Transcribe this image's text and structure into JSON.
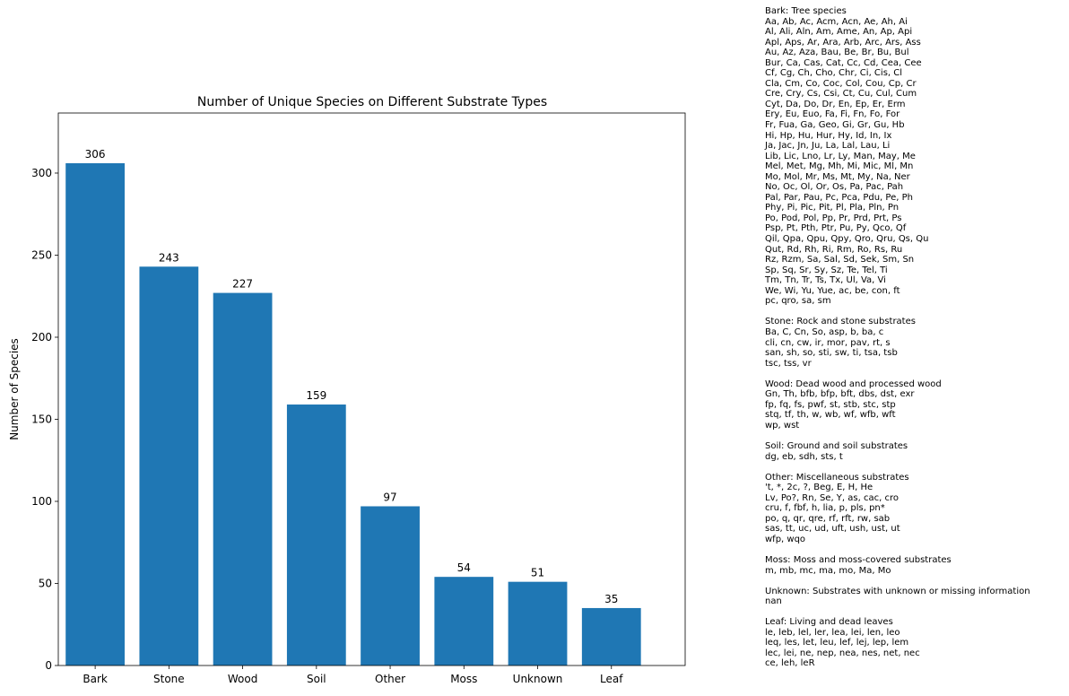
{
  "chart_data": {
    "type": "bar",
    "title": "Number of Unique Species on Different Substrate Types",
    "xlabel": "",
    "ylabel": "Number of Species",
    "categories": [
      "Bark",
      "Stone",
      "Wood",
      "Soil",
      "Other",
      "Moss",
      "Unknown",
      "Leaf"
    ],
    "values": [
      306,
      243,
      227,
      159,
      97,
      54,
      51,
      35
    ],
    "data_labels": [
      "306",
      "243",
      "227",
      "159",
      "97",
      "54",
      "51",
      "35"
    ],
    "ylim": [
      0,
      336.6
    ],
    "yticks": [
      0,
      50,
      100,
      150,
      200,
      250,
      300
    ],
    "ytick_labels": [
      "0",
      "50",
      "100",
      "150",
      "200",
      "250",
      "300"
    ],
    "grid": false,
    "bar_color": "#1f77b4"
  },
  "notes": [
    {
      "title": "Bark: Tree species",
      "lines": [
        "Aa, Ab, Ac, Acm, Acn, Ae, Ah, Ai",
        "Al, Ali, Aln, Am, Ame, An, Ap, Api",
        "Apl, Aps, Ar, Ara, Arb, Arc, Ars, Ass",
        "Au, Az, Aza, Bau, Be, Br, Bu, Bul",
        "Bur, Ca, Cas, Cat, Cc, Cd, Cea, Cee",
        "Cf, Cg, Ch, Cho, Chr, Ci, Cis, Cl",
        "Cla, Cm, Co, Coc, Col, Cou, Cp, Cr",
        "Cre, Cry, Cs, Csi, Ct, Cu, Cul, Cum",
        "Cyt, Da, Do, Dr, En, Ep, Er, Erm",
        "Ery, Eu, Euo, Fa, Fi, Fn, Fo, For",
        "Fr, Fua, Ga, Geo, Gi, Gr, Gu, Hb",
        "Hi, Hp, Hu, Hur, Hy, Id, In, Ix",
        "Ja, Jac, Jn, Ju, La, Lal, Lau, Li",
        "Lib, Lic, Lno, Lr, Ly, Man, May, Me",
        "Mel, Met, Mg, Mh, Mi, Mic, Ml, Mn",
        "Mo, Mol, Mr, Ms, Mt, My, Na, Ner",
        "No, Oc, Ol, Or, Os, Pa, Pac, Pah",
        "Pal, Par, Pau, Pc, Pca, Pdu, Pe, Ph",
        "Phy, Pi, Pic, Pit, Pl, Pla, Pln, Pn",
        "Po, Pod, Pol, Pp, Pr, Prd, Prt, Ps",
        "Psp, Pt, Pth, Ptr, Pu, Py, Qco, Qf",
        "Qil, Qpa, Qpu, Qpy, Qro, Qru, Qs, Qu",
        "Qut, Rd, Rh, Ri, Rm, Ro, Rs, Ru",
        "Rz, Rzm, Sa, Sal, Sd, Sek, Sm, Sn",
        "Sp, Sq, Sr, Sy, Sz, Te, Tel, Ti",
        "Tm, Tn, Tr, Ts, Tx, Ul, Va, Vi",
        "We, Wi, Yu, Yue, ac, be, con, ft",
        "pc, qro, sa, sm"
      ]
    },
    {
      "title": "Stone: Rock and stone substrates",
      "lines": [
        "Ba, C, Cn, So, asp, b, ba, c",
        "cli, cn, cw, ir, mor, pav, rt, s",
        "san, sh, so, sti, sw, ti, tsa, tsb",
        "tsc, tss, vr"
      ]
    },
    {
      "title": "Wood: Dead wood and processed wood",
      "lines": [
        "Gn, Th, bfb, bfp, bft, dbs, dst, exr",
        "fp, fq, fs, pwf, st, stb, stc, stp",
        "stq, tf, th, w, wb, wf, wfb, wft",
        "wp, wst"
      ]
    },
    {
      "title": "Soil: Ground and soil substrates",
      "lines": [
        "dg, eb, sdh, sts, t"
      ]
    },
    {
      "title": "Other: Miscellaneous substrates",
      "lines": [
        "'t, *, 2c, ?, Beg, E, H, He",
        "Lv, Po?, Rn, Se, Y, as, cac, cro",
        "cru, f, fbf, h, lia, p, pls, pn*",
        "po, q, qr, qre, rf, rft, rw, sab",
        "sas, tt, uc, ud, uft, ush, ust, ut",
        "wfp, wqo"
      ]
    },
    {
      "title": "Moss: Moss and moss-covered substrates",
      "lines": [
        "m, mb, mc, ma, mo, Ma, Mo"
      ]
    },
    {
      "title": "Unknown: Substrates with unknown or missing information",
      "lines": [
        "nan"
      ]
    },
    {
      "title": "Leaf: Living and dead leaves",
      "lines": [
        "le, leb, lel, ler, lea, lei, len, leo",
        "leq, les, let, leu, lef, lej, lep, lem",
        "lec, lei, ne, nep, nea, nes, net, nec",
        "ce, leh, leR"
      ]
    }
  ]
}
